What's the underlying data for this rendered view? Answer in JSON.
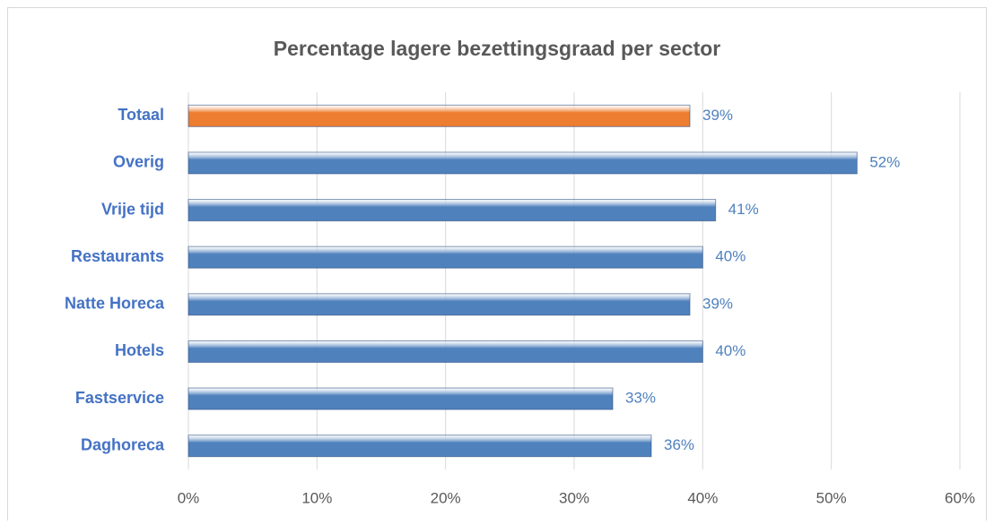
{
  "chart_data": {
    "type": "barh",
    "title": "Percentage lagere bezettingsgraad per sector",
    "categories": [
      "Totaal",
      "Overig",
      "Vrije tijd",
      "Restaurants",
      "Natte Horeca",
      "Hotels",
      "Fastservice",
      "Daghoreca"
    ],
    "values": [
      39,
      52,
      41,
      40,
      39,
      40,
      33,
      36
    ],
    "value_labels": [
      "39%",
      "52%",
      "41%",
      "40%",
      "39%",
      "40%",
      "33%",
      "36%"
    ],
    "colors": [
      "#ed7d31",
      "#4f81bd",
      "#4f81bd",
      "#4f81bd",
      "#4f81bd",
      "#4f81bd",
      "#4f81bd",
      "#4f81bd"
    ],
    "xlim": [
      0,
      60
    ],
    "xticks": [
      {
        "value": 0,
        "label": "0%"
      },
      {
        "value": 10,
        "label": "10%"
      },
      {
        "value": 20,
        "label": "20%"
      },
      {
        "value": 30,
        "label": "30%"
      },
      {
        "value": 40,
        "label": "40%"
      },
      {
        "value": 50,
        "label": "50%"
      },
      {
        "value": 60,
        "label": "60%"
      }
    ],
    "grid": true
  }
}
